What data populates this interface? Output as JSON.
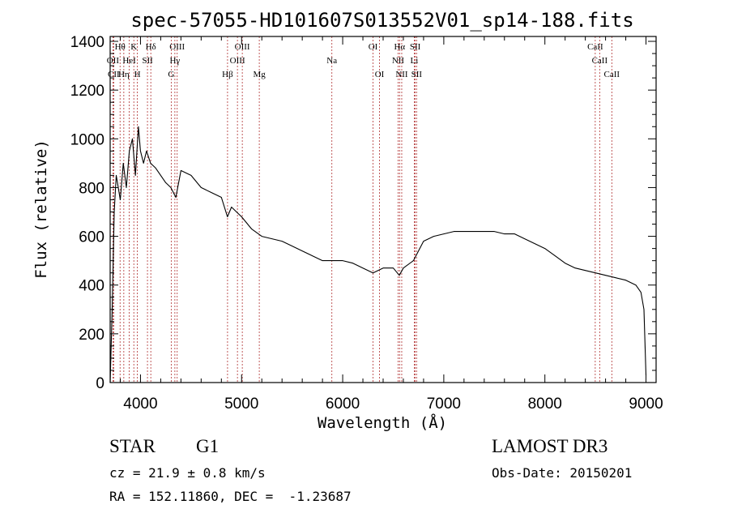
{
  "chart_data": {
    "type": "line",
    "title": "spec-57055-HD101607S013552V01_sp14-188.fits",
    "xlabel": "Wavelength (Å)",
    "ylabel": "Flux (relative)",
    "xlim": [
      3700,
      9100
    ],
    "ylim": [
      0,
      1420
    ],
    "xticks": [
      4000,
      5000,
      6000,
      7000,
      8000,
      9000
    ],
    "yticks": [
      0,
      200,
      400,
      600,
      800,
      1000,
      1200,
      1400
    ],
    "series": [
      {
        "name": "spectrum",
        "x": [
          3700,
          3720,
          3740,
          3760,
          3780,
          3800,
          3830,
          3860,
          3890,
          3920,
          3950,
          3980,
          4000,
          4030,
          4060,
          4100,
          4150,
          4200,
          4250,
          4300,
          4350,
          4400,
          4450,
          4500,
          4600,
          4700,
          4800,
          4860,
          4900,
          4950,
          5000,
          5100,
          5200,
          5300,
          5400,
          5500,
          5600,
          5700,
          5800,
          5900,
          6000,
          6100,
          6200,
          6300,
          6400,
          6500,
          6560,
          6600,
          6700,
          6800,
          6900,
          7000,
          7100,
          7200,
          7300,
          7400,
          7500,
          7600,
          7700,
          7800,
          7900,
          8000,
          8100,
          8200,
          8300,
          8400,
          8500,
          8600,
          8700,
          8800,
          8900,
          8950,
          8980,
          9000
        ],
        "y": [
          0,
          300,
          700,
          850,
          800,
          750,
          900,
          800,
          950,
          1000,
          850,
          1050,
          950,
          900,
          950,
          900,
          880,
          850,
          820,
          800,
          760,
          870,
          860,
          850,
          800,
          780,
          760,
          680,
          720,
          700,
          680,
          630,
          600,
          590,
          580,
          560,
          540,
          520,
          500,
          500,
          500,
          490,
          470,
          450,
          470,
          470,
          440,
          470,
          500,
          580,
          600,
          610,
          620,
          620,
          620,
          620,
          620,
          610,
          610,
          590,
          570,
          550,
          520,
          490,
          470,
          460,
          450,
          440,
          430,
          420,
          400,
          370,
          300,
          30
        ]
      }
    ],
    "spectral_lines": [
      {
        "label": "Hθ",
        "x": 3798,
        "row": 1
      },
      {
        "label": "OII",
        "x": 3727,
        "row": 2
      },
      {
        "label": "CII",
        "x": 3735,
        "row": 3
      },
      {
        "label": "Hη",
        "x": 3835,
        "row": 3
      },
      {
        "label": "HeI",
        "x": 3889,
        "row": 2
      },
      {
        "label": "K",
        "x": 3934,
        "row": 1
      },
      {
        "label": "H",
        "x": 3969,
        "row": 3
      },
      {
        "label": "Hδ",
        "x": 4102,
        "row": 1
      },
      {
        "label": "SII",
        "x": 4069,
        "row": 2
      },
      {
        "label": "OIII",
        "x": 4363,
        "row": 1
      },
      {
        "label": "Hγ",
        "x": 4340,
        "row": 2
      },
      {
        "label": "G",
        "x": 4304,
        "row": 3
      },
      {
        "label": "Hβ",
        "x": 4861,
        "row": 3
      },
      {
        "label": "OIII",
        "x": 5007,
        "row": 1
      },
      {
        "label": "OIII",
        "x": 4959,
        "row": 2
      },
      {
        "label": "Mg",
        "x": 5175,
        "row": 3
      },
      {
        "label": "Na",
        "x": 5893,
        "row": 2
      },
      {
        "label": "OI",
        "x": 6300,
        "row": 1
      },
      {
        "label": "OI",
        "x": 6364,
        "row": 3
      },
      {
        "label": "Hα",
        "x": 6563,
        "row": 1
      },
      {
        "label": "NII",
        "x": 6548,
        "row": 2
      },
      {
        "label": "NII",
        "x": 6584,
        "row": 3
      },
      {
        "label": "SII",
        "x": 6717,
        "row": 1
      },
      {
        "label": "Li",
        "x": 6708,
        "row": 2
      },
      {
        "label": "SII",
        "x": 6731,
        "row": 3
      },
      {
        "label": "CaII",
        "x": 8498,
        "row": 1
      },
      {
        "label": "CaII",
        "x": 8542,
        "row": 2
      },
      {
        "label": "CaII",
        "x": 8662,
        "row": 3
      }
    ],
    "line_color": "#000000",
    "marker_color": "#b03030"
  },
  "info": {
    "object_class": "STAR",
    "subclass": "G1",
    "survey": "LAMOST DR3",
    "redshift": "cz = 21.9 ± 0.8 km/s",
    "obs_date": "Obs-Date: 20150201",
    "coords": "RA = 152.11860, DEC =  -1.23687"
  }
}
